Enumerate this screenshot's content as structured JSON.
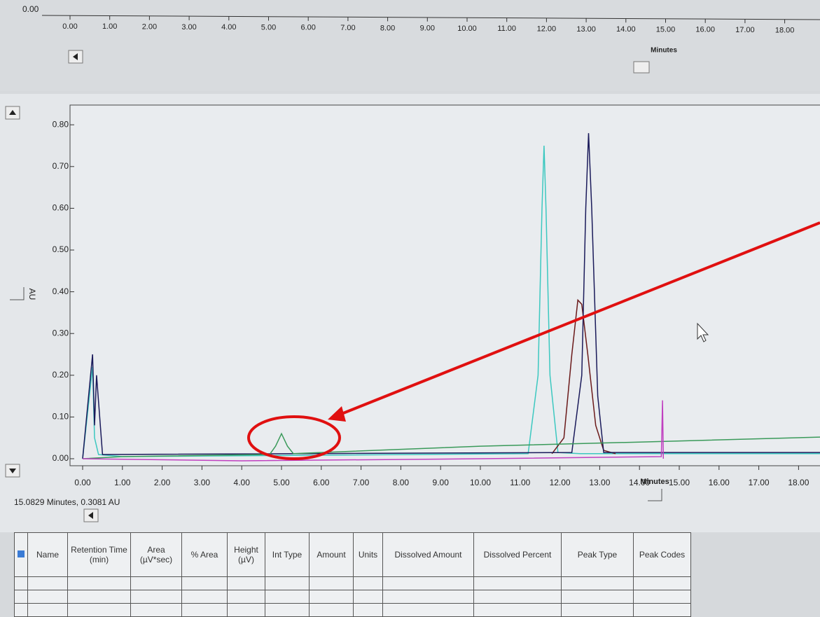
{
  "top_axis": {
    "ytick": "0.00",
    "xticks": [
      {
        "value": 0,
        "label": "0.00"
      },
      {
        "value": 1,
        "label": "1.00"
      },
      {
        "value": 2,
        "label": "2.00"
      },
      {
        "value": 3,
        "label": "3.00"
      },
      {
        "value": 4,
        "label": "4.00"
      },
      {
        "value": 5,
        "label": "5.00"
      },
      {
        "value": 6,
        "label": "6.00"
      },
      {
        "value": 7,
        "label": "7.00"
      },
      {
        "value": 8,
        "label": "8.00"
      },
      {
        "value": 9,
        "label": "9.00"
      },
      {
        "value": 10,
        "label": "10.00"
      },
      {
        "value": 11,
        "label": "11.00"
      },
      {
        "value": 12,
        "label": "12.00"
      },
      {
        "value": 13,
        "label": "13.00"
      },
      {
        "value": 14,
        "label": "14.00"
      },
      {
        "value": 15,
        "label": "15.00"
      },
      {
        "value": 16,
        "label": "16.00"
      },
      {
        "value": 17,
        "label": "17.00"
      },
      {
        "value": 18,
        "label": "18.00"
      }
    ],
    "x_label": "Minutes"
  },
  "chart_data": {
    "type": "line",
    "x_label": "Minutes",
    "y_label": "AU",
    "xlim": [
      -0.3,
      18.6
    ],
    "ylim": [
      -0.02,
      0.84
    ],
    "xticks": [
      {
        "value": 0,
        "label": "0.00"
      },
      {
        "value": 1,
        "label": "1.00"
      },
      {
        "value": 2,
        "label": "2.00"
      },
      {
        "value": 3,
        "label": "3.00"
      },
      {
        "value": 4,
        "label": "4.00"
      },
      {
        "value": 5,
        "label": "5.00"
      },
      {
        "value": 6,
        "label": "6.00"
      },
      {
        "value": 7,
        "label": "7.00"
      },
      {
        "value": 8,
        "label": "8.00"
      },
      {
        "value": 9,
        "label": "9.00"
      },
      {
        "value": 10,
        "label": "10.00"
      },
      {
        "value": 11,
        "label": "11.00"
      },
      {
        "value": 12,
        "label": "12.00"
      },
      {
        "value": 13,
        "label": "13.00"
      },
      {
        "value": 14,
        "label": "14.00"
      },
      {
        "value": 15,
        "label": "15.00"
      },
      {
        "value": 16,
        "label": "16.00"
      },
      {
        "value": 17,
        "label": "17.00"
      },
      {
        "value": 18,
        "label": "18.00"
      }
    ],
    "yticks": [
      {
        "value": 0,
        "label": "0.00"
      },
      {
        "value": 0.1,
        "label": "0.10"
      },
      {
        "value": 0.2,
        "label": "0.20"
      },
      {
        "value": 0.3,
        "label": "0.30"
      },
      {
        "value": 0.4,
        "label": "0.40"
      },
      {
        "value": 0.5,
        "label": "0.50"
      },
      {
        "value": 0.6,
        "label": "0.60"
      },
      {
        "value": 0.7,
        "label": "0.70"
      },
      {
        "value": 0.8,
        "label": "0.80"
      }
    ],
    "series": [
      {
        "color": "#3cc8c0",
        "x": [
          0,
          0.25,
          0.3,
          0.4,
          1,
          11.2,
          11.45,
          11.55,
          11.6,
          11.65,
          11.75,
          11.95,
          12.5,
          18.6
        ],
        "values": [
          0,
          0.22,
          0.05,
          0.01,
          0.005,
          0.012,
          0.2,
          0.6,
          0.75,
          0.6,
          0.2,
          0.015,
          0.012,
          0.012
        ]
      },
      {
        "color": "#6b1a1a",
        "x": [
          11.8,
          12.1,
          12.3,
          12.45,
          12.55,
          12.7,
          12.9,
          13.1,
          13.4
        ],
        "values": [
          0.012,
          0.05,
          0.25,
          0.38,
          0.37,
          0.25,
          0.08,
          0.02,
          0.012
        ]
      },
      {
        "color": "#1a1a5a",
        "x": [
          0,
          0.25,
          0.3,
          0.35,
          0.5,
          12.3,
          12.55,
          12.65,
          12.72,
          12.8,
          12.95,
          13.1,
          18.6
        ],
        "values": [
          0,
          0.25,
          0.08,
          0.2,
          0.01,
          0.015,
          0.2,
          0.6,
          0.78,
          0.6,
          0.15,
          0.015,
          0.015
        ]
      },
      {
        "color": "#3a9a5a",
        "x": [
          0,
          1,
          4.7,
          4.85,
          5.0,
          5.15,
          5.3,
          6,
          10,
          14,
          18.6
        ],
        "values": [
          0,
          0.005,
          0.01,
          0.03,
          0.06,
          0.03,
          0.012,
          0.015,
          0.03,
          0.04,
          0.052
        ]
      },
      {
        "color": "#c040c0",
        "x": [
          0,
          4,
          10,
          14.55,
          14.58,
          14.6
        ],
        "values": [
          0,
          -0.005,
          0,
          0.005,
          0.14,
          0
        ]
      }
    ]
  },
  "status": "15.0829 Minutes, 0.3081 AU",
  "table": {
    "headers": [
      "Name",
      "Retention Time (min)",
      "Area (µV*sec)",
      "% Area",
      "Height (µV)",
      "Int Type",
      "Amount",
      "Units",
      "Dissolved Amount",
      "Dissolved Percent",
      "Peak Type",
      "Peak Codes"
    ]
  }
}
